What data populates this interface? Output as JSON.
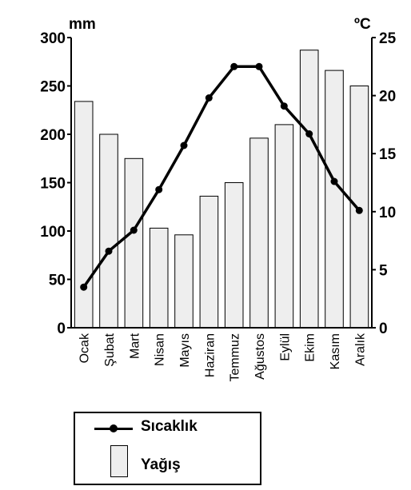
{
  "chart_data": {
    "type": "bar+line",
    "categories": [
      "Ocak",
      "Şubat",
      "Mart",
      "Nisan",
      "Mayıs",
      "Haziran",
      "Temmuz",
      "Ağustos",
      "Eylül",
      "Ekim",
      "Kasım",
      "Aralık"
    ],
    "series": [
      {
        "name": "Yağış",
        "type": "bar",
        "axis": "left",
        "values": [
          234,
          200,
          175,
          103,
          96,
          136,
          150,
          196,
          210,
          287,
          266,
          250
        ]
      },
      {
        "name": "Sıcaklık",
        "type": "line",
        "axis": "right",
        "values": [
          3.5,
          6.6,
          8.4,
          11.9,
          15.7,
          19.8,
          22.5,
          22.5,
          19.1,
          16.7,
          12.6,
          10.1
        ]
      }
    ],
    "y_left": {
      "unit": "mm",
      "range": [
        0,
        300
      ],
      "ticks": [
        0,
        50,
        100,
        150,
        200,
        250,
        300
      ]
    },
    "y_right": {
      "unit": "ºC",
      "range": [
        0,
        25
      ],
      "ticks": [
        0,
        5,
        10,
        15,
        20,
        25
      ]
    },
    "legend_placement": "bottom-left",
    "grid": false,
    "colors": {
      "bar_fill": "#eeeeee",
      "line": "#000000"
    }
  },
  "legend": {
    "line_label": "Sıcaklık",
    "bar_label": "Yağış"
  }
}
